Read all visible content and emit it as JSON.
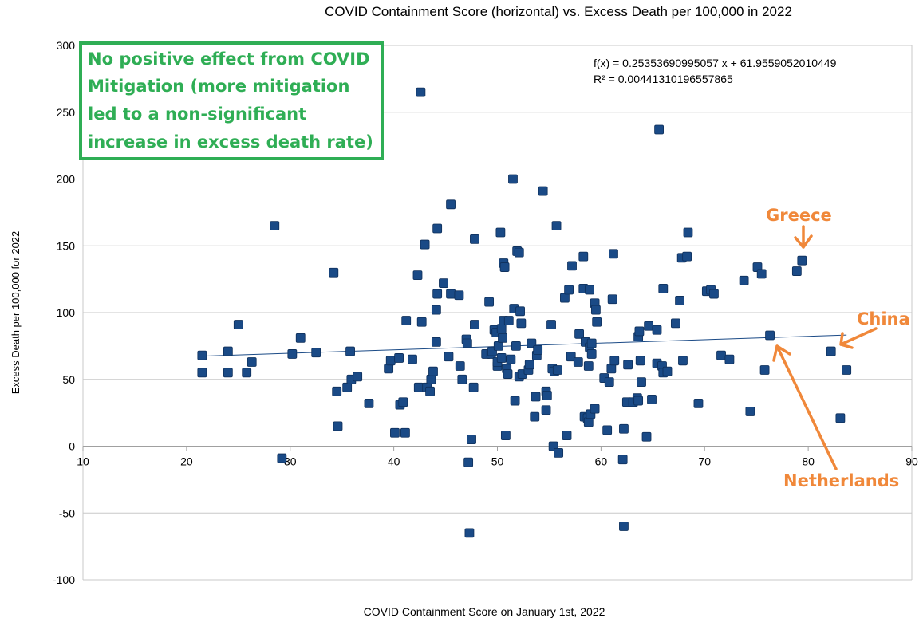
{
  "chart_data": {
    "type": "scatter",
    "title": "COVID Containment Score (horizontal) vs. Excess Death per 100,000 in 2022",
    "xlabel": "COVID Containment Score on January 1st, 2022",
    "ylabel": "Excess Death per 100,000 for 2022",
    "xlim": [
      10,
      90
    ],
    "ylim": [
      -100,
      300
    ],
    "xticks": [
      10,
      20,
      30,
      40,
      50,
      60,
      70,
      80,
      90
    ],
    "yticks": [
      -100,
      -50,
      0,
      50,
      100,
      150,
      200,
      250,
      300
    ],
    "grid": "horizontal",
    "legend": "none",
    "colors": {
      "points": "#1a4a86",
      "trendline": "#1a4a86",
      "grid": "#c8c8c8",
      "note_green": "#2fae55",
      "callout_orange": "#f0883a"
    },
    "trendline": {
      "slope": 0.25353690995057,
      "intercept": 61.9559052010449,
      "equation": "f(x) = 0.25353690995057 x + 61.9559052010449",
      "r2": "R² = 0.00441310196557865"
    },
    "points": [
      [
        21.5,
        68
      ],
      [
        21.5,
        55
      ],
      [
        24,
        71
      ],
      [
        24,
        55
      ],
      [
        25,
        91
      ],
      [
        25.8,
        55
      ],
      [
        26.3,
        63
      ],
      [
        28.5,
        165
      ],
      [
        29.2,
        -9
      ],
      [
        30.2,
        69
      ],
      [
        31,
        81
      ],
      [
        32.5,
        70
      ],
      [
        34.2,
        130
      ],
      [
        34.5,
        41
      ],
      [
        34.6,
        15
      ],
      [
        35.5,
        44
      ],
      [
        35.8,
        71
      ],
      [
        35.9,
        50
      ],
      [
        36.5,
        52
      ],
      [
        37.6,
        32
      ],
      [
        39.5,
        58
      ],
      [
        39.7,
        64
      ],
      [
        40.1,
        10
      ],
      [
        40.5,
        66
      ],
      [
        40.6,
        31
      ],
      [
        40.9,
        33
      ],
      [
        41.1,
        10
      ],
      [
        41.2,
        94
      ],
      [
        41.8,
        65
      ],
      [
        42.3,
        128
      ],
      [
        42.4,
        44
      ],
      [
        42.6,
        265
      ],
      [
        42.7,
        93
      ],
      [
        43,
        151
      ],
      [
        43.2,
        44
      ],
      [
        43.5,
        41
      ],
      [
        43.6,
        50
      ],
      [
        43.8,
        56
      ],
      [
        44.1,
        78
      ],
      [
        44.1,
        102
      ],
      [
        44.2,
        114
      ],
      [
        44.2,
        163
      ],
      [
        44.8,
        122
      ],
      [
        45.3,
        67
      ],
      [
        45.5,
        114
      ],
      [
        45.5,
        181
      ],
      [
        46.3,
        113
      ],
      [
        46.4,
        60
      ],
      [
        46.6,
        50
      ],
      [
        47,
        80
      ],
      [
        47.1,
        77
      ],
      [
        47.2,
        -12
      ],
      [
        47.3,
        -65
      ],
      [
        47.5,
        5
      ],
      [
        47.7,
        44
      ],
      [
        47.8,
        91
      ],
      [
        47.8,
        155
      ],
      [
        48.9,
        69
      ],
      [
        49.2,
        108
      ],
      [
        49.4,
        69
      ],
      [
        49.5,
        71
      ],
      [
        49.7,
        87
      ],
      [
        49.9,
        85
      ],
      [
        50,
        60
      ],
      [
        50,
        63
      ],
      [
        50.1,
        75
      ],
      [
        50.3,
        160
      ],
      [
        50.4,
        88
      ],
      [
        50.4,
        66
      ],
      [
        50.5,
        81
      ],
      [
        50.6,
        94
      ],
      [
        50.6,
        137
      ],
      [
        50.7,
        134
      ],
      [
        50.8,
        8
      ],
      [
        50.9,
        58
      ],
      [
        51,
        54
      ],
      [
        51.1,
        94
      ],
      [
        51.3,
        65
      ],
      [
        51.5,
        200
      ],
      [
        51.6,
        103
      ],
      [
        51.7,
        34
      ],
      [
        51.8,
        75
      ],
      [
        51.9,
        146
      ],
      [
        52.1,
        145
      ],
      [
        52.1,
        52
      ],
      [
        52.2,
        101
      ],
      [
        52.3,
        92
      ],
      [
        52.4,
        54
      ],
      [
        53,
        57
      ],
      [
        53.1,
        61
      ],
      [
        53.3,
        77
      ],
      [
        53.6,
        22
      ],
      [
        53.7,
        37
      ],
      [
        53.8,
        68
      ],
      [
        53.9,
        72
      ],
      [
        54.4,
        191
      ],
      [
        54.7,
        41
      ],
      [
        54.7,
        27
      ],
      [
        54.8,
        38
      ],
      [
        55.2,
        91
      ],
      [
        55.3,
        58
      ],
      [
        55.4,
        0
      ],
      [
        55.5,
        56
      ],
      [
        55.7,
        165
      ],
      [
        55.8,
        57
      ],
      [
        55.9,
        -5
      ],
      [
        56.5,
        111
      ],
      [
        56.7,
        8
      ],
      [
        56.9,
        117
      ],
      [
        57.1,
        67
      ],
      [
        57.2,
        135
      ],
      [
        57.8,
        63
      ],
      [
        57.9,
        84
      ],
      [
        58.3,
        118
      ],
      [
        58.3,
        142
      ],
      [
        58.4,
        22
      ],
      [
        58.5,
        78
      ],
      [
        58.7,
        21
      ],
      [
        58.8,
        18
      ],
      [
        58.8,
        60
      ],
      [
        58.9,
        117
      ],
      [
        58.9,
        74
      ],
      [
        59,
        24
      ],
      [
        59.1,
        69
      ],
      [
        59.1,
        77
      ],
      [
        59.4,
        107
      ],
      [
        59.4,
        28
      ],
      [
        59.5,
        102
      ],
      [
        59.6,
        93
      ],
      [
        60.3,
        51
      ],
      [
        60.6,
        12
      ],
      [
        60.8,
        48
      ],
      [
        61,
        58
      ],
      [
        61.1,
        110
      ],
      [
        61.2,
        144
      ],
      [
        61.3,
        64
      ],
      [
        62.1,
        -10
      ],
      [
        62.2,
        13
      ],
      [
        62.2,
        -60
      ],
      [
        62.5,
        33
      ],
      [
        62.6,
        61
      ],
      [
        63.1,
        33
      ],
      [
        63.5,
        36
      ],
      [
        63.6,
        34
      ],
      [
        63.6,
        82
      ],
      [
        63.7,
        86
      ],
      [
        63.8,
        64
      ],
      [
        63.9,
        48
      ],
      [
        64.4,
        7
      ],
      [
        64.6,
        90
      ],
      [
        64.9,
        35
      ],
      [
        65.4,
        87
      ],
      [
        65.4,
        62
      ],
      [
        65.6,
        237
      ],
      [
        65.9,
        60
      ],
      [
        66,
        118
      ],
      [
        66,
        55
      ],
      [
        66.4,
        56
      ],
      [
        67.2,
        92
      ],
      [
        67.6,
        109
      ],
      [
        67.8,
        141
      ],
      [
        67.9,
        64
      ],
      [
        68.3,
        142
      ],
      [
        68.4,
        160
      ],
      [
        69.4,
        32
      ],
      [
        70.2,
        116
      ],
      [
        70.6,
        117
      ],
      [
        70.9,
        114
      ],
      [
        71.6,
        68
      ],
      [
        72.4,
        65
      ],
      [
        73.8,
        124
      ],
      [
        74.4,
        26
      ],
      [
        75.1,
        134
      ],
      [
        75.5,
        129
      ],
      [
        75.8,
        57
      ],
      [
        76.3,
        83
      ],
      [
        78.9,
        131
      ],
      [
        79.4,
        139
      ],
      [
        82.2,
        71
      ],
      [
        83.1,
        21
      ],
      [
        83.7,
        57
      ]
    ],
    "annotations": {
      "note": [
        "No positive effect from COVID",
        "Mitigation (more mitigation",
        "led to a non-significant",
        "increase in excess death rate)"
      ],
      "greece": "Greece",
      "china": "China",
      "netherlands": "Netherlands"
    }
  }
}
